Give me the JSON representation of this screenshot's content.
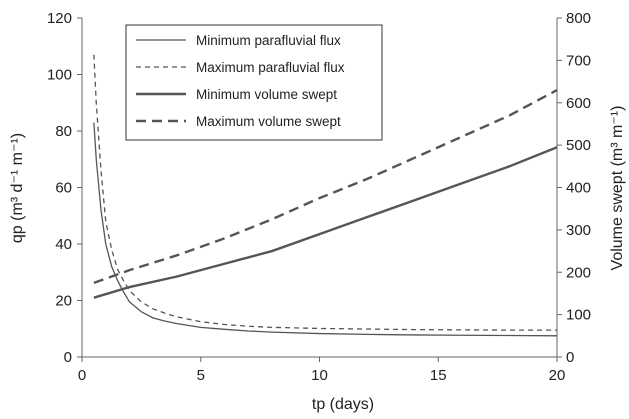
{
  "chart_data": {
    "type": "line",
    "xlabel": "tp (days)",
    "ylabel_left": "qp (m³ d⁻¹ m⁻¹)",
    "ylabel_right": "Volume swept  (m³ m⁻¹)",
    "xlim": [
      0,
      20
    ],
    "ylim_left": [
      0,
      120
    ],
    "ylim_right": [
      0,
      800
    ],
    "xticks": [
      "0",
      "5",
      "10",
      "15",
      "20"
    ],
    "yticks_left": [
      "0",
      "20",
      "40",
      "60",
      "80",
      "100",
      "120"
    ],
    "yticks_right": [
      "0",
      "100",
      "200",
      "300",
      "400",
      "500",
      "600",
      "700",
      "800"
    ],
    "grid": false,
    "legend_position": "top-left",
    "series": [
      {
        "name": "Minimum parafluvial flux",
        "axis": "left",
        "style": "thin-solid",
        "color": "#555555",
        "x": [
          0.5,
          0.6,
          0.8,
          1,
          1.25,
          1.5,
          1.75,
          2,
          2.5,
          3,
          3.5,
          4,
          5,
          6,
          7,
          8,
          10,
          12,
          14,
          16,
          18,
          20
        ],
        "y": [
          83,
          70,
          52,
          40,
          32,
          27,
          23,
          19.5,
          16,
          13.8,
          12.7,
          11.8,
          10.5,
          9.8,
          9.2,
          8.8,
          8.3,
          8.0,
          7.8,
          7.7,
          7.6,
          7.5
        ]
      },
      {
        "name": "Maximum parafluvial flux",
        "axis": "left",
        "style": "thin-dashed",
        "color": "#555555",
        "x": [
          0.5,
          0.6,
          0.8,
          1,
          1.25,
          1.5,
          1.75,
          2,
          2.5,
          3,
          3.5,
          4,
          5,
          6,
          7,
          8,
          10,
          12,
          14,
          16,
          18,
          20
        ],
        "y": [
          107,
          90,
          66,
          48,
          38,
          31,
          27,
          23.5,
          19.5,
          17,
          15.5,
          14.2,
          12.5,
          11.5,
          10.9,
          10.5,
          10.1,
          9.9,
          9.7,
          9.6,
          9.5,
          9.5
        ]
      },
      {
        "name": "Minimum volume swept",
        "axis": "right",
        "style": "thick-solid",
        "color": "#555555",
        "x": [
          0.5,
          2,
          4,
          6,
          8,
          10,
          12,
          14,
          16,
          18,
          20
        ],
        "y": [
          140,
          165,
          190,
          220,
          250,
          290,
          330,
          370,
          410,
          450,
          495
        ]
      },
      {
        "name": "Maximum volume swept",
        "axis": "right",
        "style": "thick-dashed",
        "color": "#555555",
        "x": [
          0.5,
          2,
          4,
          6,
          8,
          10,
          12,
          14,
          16,
          18,
          20
        ],
        "y": [
          175,
          205,
          240,
          280,
          325,
          375,
          420,
          470,
          520,
          570,
          630
        ]
      }
    ]
  }
}
